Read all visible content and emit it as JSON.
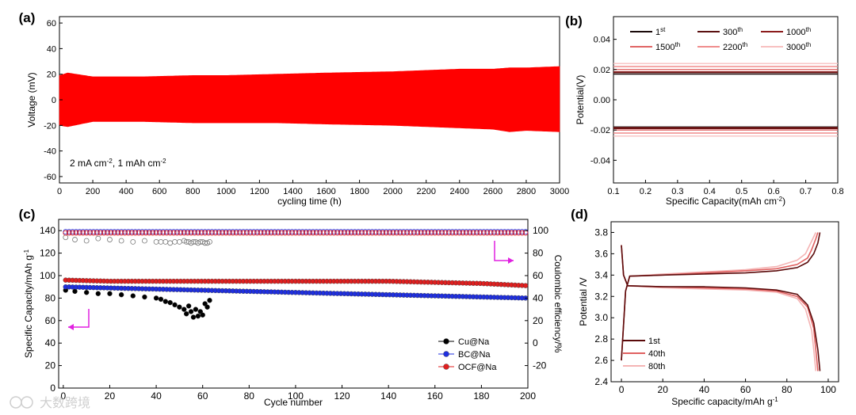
{
  "watermark": "大数跨境",
  "chart_data": [
    {
      "panel": "(a)",
      "type": "area",
      "xlabel": "cycling time (h)",
      "ylabel": "Voltage (mV)",
      "xlim": [
        0,
        3000
      ],
      "ylim": [
        -65,
        65
      ],
      "xticks": [
        0,
        200,
        400,
        600,
        800,
        1000,
        1200,
        1400,
        1600,
        1800,
        2000,
        2200,
        2400,
        2600,
        2800,
        3000
      ],
      "yticks": [
        -60,
        -40,
        -20,
        0,
        20,
        40,
        60
      ],
      "annotation": "2 mA cm-2, 1 mAh cm-2",
      "color": "#ff0000",
      "x": [
        0,
        50,
        200,
        500,
        800,
        1000,
        1300,
        1600,
        2000,
        2200,
        2400,
        2600,
        2700,
        2800,
        3000
      ],
      "upper": [
        19,
        21,
        18,
        18,
        19,
        19,
        20,
        21,
        22,
        23,
        24,
        24,
        25,
        25,
        26
      ],
      "lower": [
        -20,
        -21,
        -17,
        -17,
        -18,
        -18,
        -18,
        -19,
        -20,
        -21,
        -22,
        -23,
        -25,
        -24,
        -25
      ]
    },
    {
      "panel": "(b)",
      "type": "line",
      "xlabel": "Specific Capacity(mAh cm-2)",
      "ylabel": "Potential(V)",
      "xlim": [
        0.1,
        0.8
      ],
      "ylim": [
        -0.055,
        0.055
      ],
      "xticks": [
        0.1,
        0.2,
        0.3,
        0.4,
        0.5,
        0.6,
        0.7,
        0.8
      ],
      "yticks": [
        -0.04,
        -0.02,
        0.0,
        0.02,
        0.04
      ],
      "series": [
        {
          "name": "1st",
          "color": "#1a0a0a",
          "upper": 0.017,
          "lower": -0.018
        },
        {
          "name": "300th",
          "color": "#5a1010",
          "upper": 0.018,
          "lower": -0.019
        },
        {
          "name": "1000th",
          "color": "#8c1c1c",
          "upper": 0.0185,
          "lower": -0.0185
        },
        {
          "name": "1500th",
          "color": "#e06464",
          "upper": 0.02,
          "lower": -0.02
        },
        {
          "name": "2200th",
          "color": "#f08c8c",
          "upper": 0.022,
          "lower": -0.022
        },
        {
          "name": "3000th",
          "color": "#f8c0c0",
          "upper": 0.024,
          "lower": -0.024
        }
      ]
    },
    {
      "panel": "(c)",
      "type": "scatter",
      "xlabel": "Cycle number",
      "ylabel": "Specific Capacity/mAh g-1",
      "y2label": "Coulombic efficiency/%",
      "xlim": [
        -2,
        200
      ],
      "ylim": [
        0,
        150
      ],
      "y2lim": [
        -40,
        110
      ],
      "xticks": [
        0,
        20,
        40,
        60,
        80,
        100,
        120,
        140,
        160,
        180,
        200
      ],
      "yticks": [
        0,
        20,
        40,
        60,
        80,
        100,
        120,
        140
      ],
      "y2ticks": [
        -20,
        0,
        20,
        40,
        60,
        80,
        100
      ],
      "series": [
        {
          "name": "Cu@Na",
          "color": "#000000",
          "x": [
            1,
            5,
            10,
            15,
            20,
            25,
            30,
            35,
            40,
            42,
            44,
            46,
            48,
            50,
            52,
            53,
            54,
            55,
            56,
            57,
            58,
            59,
            60,
            61,
            62,
            63
          ],
          "capacity": [
            87,
            86,
            85,
            84,
            84,
            83,
            82,
            81,
            80,
            79,
            77,
            76,
            74,
            72,
            70,
            66,
            73,
            68,
            63,
            70,
            64,
            68,
            65,
            75,
            72,
            78
          ],
          "ce": [
            94,
            92,
            91,
            93,
            92,
            91,
            90,
            91,
            90,
            90,
            90,
            89,
            90,
            90,
            91,
            90,
            90,
            89,
            90,
            90,
            89,
            90,
            90,
            89,
            89,
            90
          ]
        },
        {
          "name": "BC@Na",
          "color": "#1f2fe0",
          "x": [
            1,
            20,
            40,
            60,
            80,
            100,
            120,
            140,
            160,
            180,
            200
          ],
          "capacity": [
            90,
            89,
            88,
            87,
            86,
            85,
            84,
            83,
            82,
            81,
            80
          ],
          "ce": [
            99,
            99,
            99,
            99,
            99,
            99,
            99,
            99,
            99,
            99,
            99
          ]
        },
        {
          "name": "OCF@Na",
          "color": "#e01f1f",
          "x": [
            1,
            20,
            40,
            60,
            80,
            100,
            120,
            140,
            160,
            180,
            200
          ],
          "capacity": [
            96,
            95,
            95,
            95,
            95,
            95,
            95,
            95,
            94,
            93,
            91
          ],
          "ce": [
            98,
            98,
            98,
            98,
            98,
            98,
            98,
            98,
            98,
            98,
            98
          ]
        }
      ]
    },
    {
      "panel": "(d)",
      "type": "line",
      "xlabel": "Specific capacity/mAh g-1",
      "ylabel": "Potential /V",
      "xlim": [
        -5,
        105
      ],
      "ylim": [
        2.4,
        3.9
      ],
      "xticks": [
        0,
        20,
        40,
        60,
        80,
        100
      ],
      "yticks": [
        2.4,
        2.6,
        2.8,
        3.0,
        3.2,
        3.4,
        3.6,
        3.8
      ],
      "series": [
        {
          "name": "1st",
          "color": "#5a0a0a",
          "charge_x": [
            0,
            2,
            4,
            20,
            40,
            60,
            75,
            85,
            90,
            93,
            95,
            96
          ],
          "charge_y": [
            2.6,
            3.25,
            3.39,
            3.4,
            3.41,
            3.42,
            3.44,
            3.47,
            3.52,
            3.6,
            3.7,
            3.8
          ],
          "discharge_x": [
            0,
            1,
            3,
            20,
            40,
            60,
            75,
            85,
            90,
            93,
            95,
            96
          ],
          "discharge_y": [
            3.68,
            3.4,
            3.3,
            3.29,
            3.29,
            3.28,
            3.26,
            3.22,
            3.12,
            2.95,
            2.7,
            2.5
          ]
        },
        {
          "name": "40th",
          "color": "#e06060",
          "charge_x": [
            0,
            2,
            4,
            20,
            40,
            60,
            75,
            85,
            90,
            92,
            94,
            95
          ],
          "charge_y": [
            2.6,
            3.25,
            3.39,
            3.4,
            3.42,
            3.44,
            3.46,
            3.5,
            3.56,
            3.64,
            3.74,
            3.8
          ],
          "discharge_x": [
            0,
            1,
            3,
            20,
            40,
            60,
            75,
            85,
            90,
            93,
            94,
            95
          ],
          "discharge_y": [
            3.68,
            3.4,
            3.3,
            3.29,
            3.28,
            3.27,
            3.25,
            3.2,
            3.1,
            2.9,
            2.7,
            2.5
          ]
        },
        {
          "name": "80th",
          "color": "#f4b4b4",
          "charge_x": [
            0,
            2,
            4,
            20,
            40,
            60,
            75,
            85,
            89,
            91,
            93,
            94
          ],
          "charge_y": [
            2.6,
            3.25,
            3.39,
            3.41,
            3.43,
            3.45,
            3.48,
            3.54,
            3.6,
            3.68,
            3.76,
            3.8
          ],
          "discharge_x": [
            0,
            1,
            3,
            20,
            40,
            60,
            75,
            85,
            89,
            92,
            93,
            94
          ],
          "discharge_y": [
            3.68,
            3.4,
            3.3,
            3.28,
            3.27,
            3.26,
            3.24,
            3.18,
            3.08,
            2.88,
            2.7,
            2.5
          ]
        }
      ]
    }
  ]
}
